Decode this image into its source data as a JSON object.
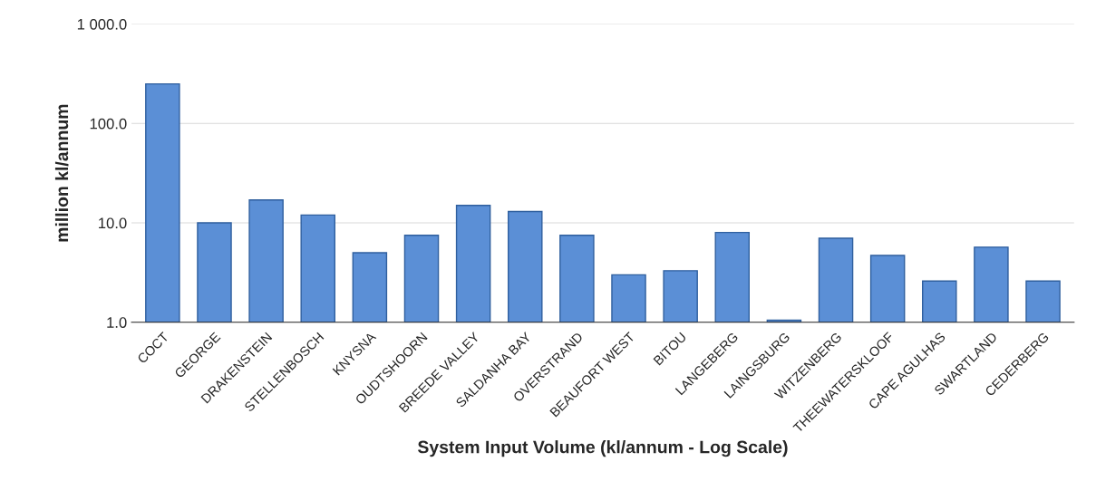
{
  "chart_data": {
    "type": "bar",
    "xlabel": "System Input Volume (kl/annum - Log Scale)",
    "ylabel": "million kl/annum",
    "categories": [
      "COCT",
      "GEORGE",
      "DRAKENSTEIN",
      "STELLENBOSCH",
      "KNYSNA",
      "OUDTSHOORN",
      "BREEDE VALLEY",
      "SALDANHA BAY",
      "OVERSTRAND",
      "BEAUFORT WEST",
      "BITOU",
      "LANGEBERG",
      "LAINGSBURG",
      "WITZENBERG",
      "THEEWATERSKLOOF",
      "CAPE AGULHAS",
      "SWARTLAND",
      "CEDERBERG"
    ],
    "values": [
      250,
      10,
      17,
      12,
      5,
      7.5,
      15,
      13,
      7.5,
      3,
      3.3,
      8,
      1.05,
      7,
      4.7,
      2.6,
      5.7,
      2.6
    ],
    "color": "#5b8fd6",
    "log": true,
    "ylim": [
      1,
      1000
    ],
    "yticks": [
      {
        "value": 1,
        "label": "1.0"
      },
      {
        "value": 10,
        "label": "10.0"
      },
      {
        "value": 100,
        "label": "100.0"
      },
      {
        "value": 1000,
        "label": "1 000.0"
      }
    ],
    "grid": "y"
  }
}
